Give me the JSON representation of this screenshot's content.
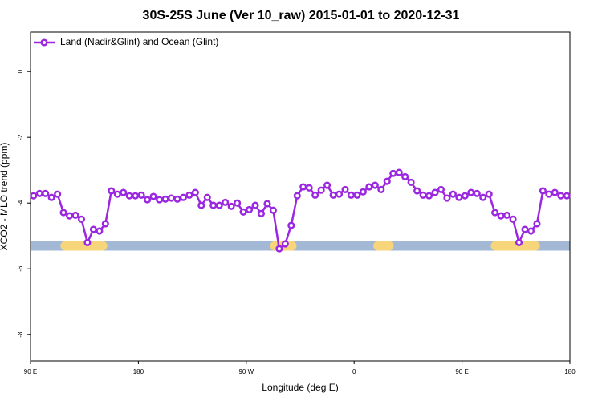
{
  "chart_data": {
    "type": "line",
    "title": "30S-25S June (Ver 10_raw)   2015-01-01 to 2020-12-31",
    "x_label": "Longitude (deg E)",
    "y_label": "XCO2 - MLO trend (ppm)",
    "xlim": [
      90,
      540
    ],
    "xticks": [
      {
        "value": 90,
        "label": "90 E"
      },
      {
        "value": 180,
        "label": "180"
      },
      {
        "value": 270,
        "label": "90 W"
      },
      {
        "value": 360,
        "label": "0"
      },
      {
        "value": 450,
        "label": "90 E"
      },
      {
        "value": 540,
        "label": "180"
      }
    ],
    "ylim": [
      1.2,
      -8.8
    ],
    "yticks": [
      0,
      -2,
      -4,
      -6,
      -8
    ],
    "legend": "top-left",
    "x": [
      92.5,
      97.5,
      102.5,
      107.5,
      112.5,
      117.5,
      122.5,
      127.5,
      132.5,
      137.5,
      142.5,
      147.5,
      152.5,
      157.5,
      162.5,
      167.5,
      172.5,
      177.5,
      182.5,
      187.5,
      192.5,
      197.5,
      202.5,
      207.5,
      212.5,
      217.5,
      222.5,
      227.5,
      232.5,
      237.5,
      242.5,
      247.5,
      252.5,
      257.5,
      262.5,
      267.5,
      272.5,
      277.5,
      282.5,
      287.5,
      292.5,
      297.5,
      302.5,
      307.5,
      312.5,
      317.5,
      322.5,
      327.5,
      332.5,
      337.5,
      342.5,
      347.5,
      352.5,
      357.5,
      362.5,
      367.5,
      372.5,
      377.5,
      382.5,
      387.5,
      392.5,
      397.5,
      402.5,
      407.5,
      412.5,
      417.5,
      422.5,
      427.5,
      432.5,
      437.5,
      442.5,
      447.5,
      452.5,
      457.5,
      462.5,
      467.5,
      472.5,
      477.5,
      482.5,
      487.5,
      492.5,
      497.5,
      502.5,
      507.5,
      512.5,
      517.5,
      522.5,
      527.5,
      532.5,
      537.5
    ],
    "series": [
      {
        "name": "Land (Nadir&Glint) and Ocean (Glint)",
        "color": "#9b27e0",
        "values": [
          -3.78,
          -3.71,
          -3.71,
          -3.83,
          -3.73,
          -4.29,
          -4.39,
          -4.37,
          -4.49,
          -5.2,
          -4.8,
          -4.85,
          -4.63,
          -3.63,
          -3.73,
          -3.68,
          -3.78,
          -3.78,
          -3.76,
          -3.9,
          -3.8,
          -3.9,
          -3.88,
          -3.85,
          -3.88,
          -3.83,
          -3.76,
          -3.68,
          -4.07,
          -3.83,
          -4.07,
          -4.07,
          -3.98,
          -4.1,
          -4.0,
          -4.27,
          -4.2,
          -4.07,
          -4.32,
          -4.02,
          -4.22,
          -5.39,
          -5.24,
          -4.68,
          -3.78,
          -3.51,
          -3.54,
          -3.76,
          -3.61,
          -3.46,
          -3.76,
          -3.73,
          -3.59,
          -3.76,
          -3.76,
          -3.66,
          -3.51,
          -3.46,
          -3.59,
          -3.34,
          -3.1,
          -3.07,
          -3.2,
          -3.37,
          -3.63,
          -3.76,
          -3.78,
          -3.68,
          -3.59,
          -3.85,
          -3.73,
          -3.83,
          -3.78,
          -3.68,
          -3.71,
          -3.83,
          -3.73,
          -4.29,
          -4.39,
          -4.37,
          -4.49,
          -5.2,
          -4.8,
          -4.85,
          -4.63,
          -3.63,
          -3.73,
          -3.68,
          -3.78,
          -3.78
        ]
      }
    ],
    "surface_strip": {
      "y": -5.3,
      "ocean_color": "#a3b8d4",
      "land_color": "#f7d57a",
      "land": [
        [
          115,
          154
        ],
        [
          290,
          312
        ],
        [
          376,
          393
        ],
        [
          474,
          515
        ]
      ]
    }
  }
}
